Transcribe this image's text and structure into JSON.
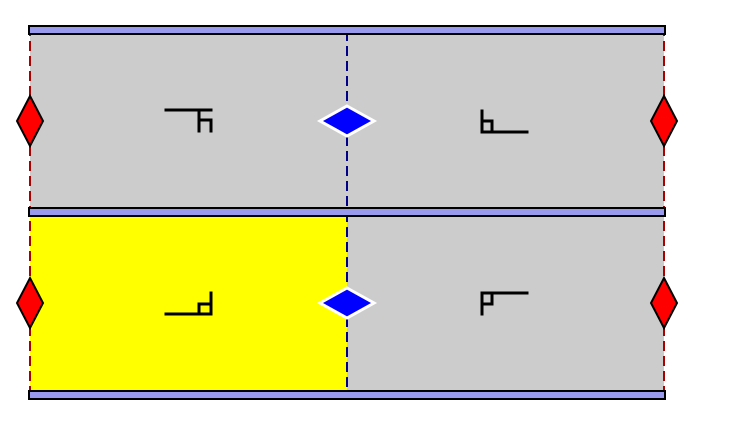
{
  "colors": {
    "background": "#ffffff",
    "tile_gray": "#cccccc",
    "tile_highlight": "#ffff00",
    "band_fill": "#9999ee",
    "band_outline": "#000000",
    "inner_seam": "#000088",
    "outer_seam": "#aa0000",
    "glyph": "#000000",
    "diamond_edge": "#ff0000",
    "diamond_inner": "#0000ff",
    "diamond_stroke": "#000000"
  },
  "grid": {
    "rows": 2,
    "cols": 2,
    "tiles": [
      {
        "row": 0,
        "col": 0,
        "fill": "gray",
        "glyph": "gamma-flipped-hook"
      },
      {
        "row": 0,
        "col": 1,
        "fill": "gray",
        "glyph": "l-corner-tab"
      },
      {
        "row": 1,
        "col": 0,
        "fill": "yellow",
        "glyph": "reversed-l-tab"
      },
      {
        "row": 1,
        "col": 1,
        "fill": "gray",
        "glyph": "gamma-corner"
      }
    ]
  },
  "markers": [
    {
      "row": 0,
      "position": "left",
      "type": "red-diamond"
    },
    {
      "row": 0,
      "position": "middle",
      "type": "blue-diamond"
    },
    {
      "row": 0,
      "position": "right",
      "type": "red-diamond"
    },
    {
      "row": 1,
      "position": "left",
      "type": "red-diamond"
    },
    {
      "row": 1,
      "position": "middle",
      "type": "blue-diamond"
    },
    {
      "row": 1,
      "position": "right",
      "type": "red-diamond"
    }
  ]
}
